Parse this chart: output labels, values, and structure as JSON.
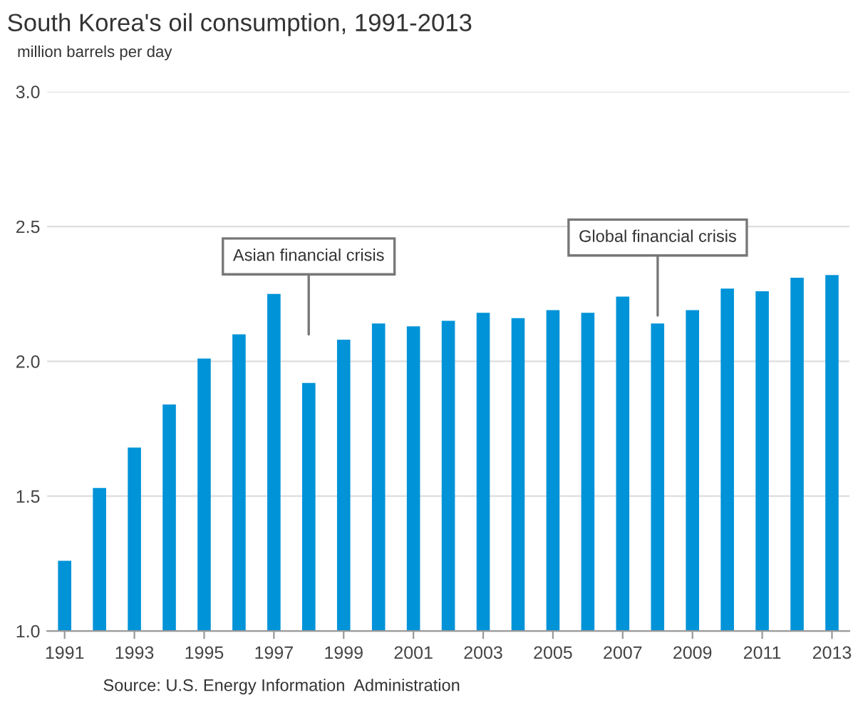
{
  "chart_data": {
    "type": "bar",
    "title": "South Korea's oil consumption, 1991-2013",
    "ylabel": "million barrels per day",
    "x": [
      1991,
      1992,
      1993,
      1994,
      1995,
      1996,
      1997,
      1998,
      1999,
      2000,
      2001,
      2002,
      2003,
      2004,
      2005,
      2006,
      2007,
      2008,
      2009,
      2010,
      2011,
      2012,
      2013
    ],
    "values": [
      1.26,
      1.53,
      1.68,
      1.84,
      2.01,
      2.1,
      2.25,
      1.92,
      2.08,
      2.14,
      2.13,
      2.15,
      2.18,
      2.16,
      2.19,
      2.18,
      2.24,
      2.14,
      2.19,
      2.27,
      2.26,
      2.31,
      2.32
    ],
    "color": "#0093d8",
    "xlim": [
      1990.5,
      2013.5
    ],
    "xticks": [
      1991,
      1993,
      1995,
      1997,
      1999,
      2001,
      2003,
      2005,
      2007,
      2009,
      2011,
      2013
    ],
    "ylim": [
      1.0,
      3.0
    ],
    "yticks": [
      {
        "value": 1.0,
        "label": "1.0"
      },
      {
        "value": 1.5,
        "label": "1.5"
      },
      {
        "value": 2.0,
        "label": "2.0"
      },
      {
        "value": 2.5,
        "label": "2.5"
      },
      {
        "value": 3.0,
        "label": "3.0"
      }
    ],
    "grid": "y",
    "annotations": [
      "Asian financial crisis",
      "Global financial crisis",
      "Source: U.S. Energy Information  Administration"
    ]
  }
}
